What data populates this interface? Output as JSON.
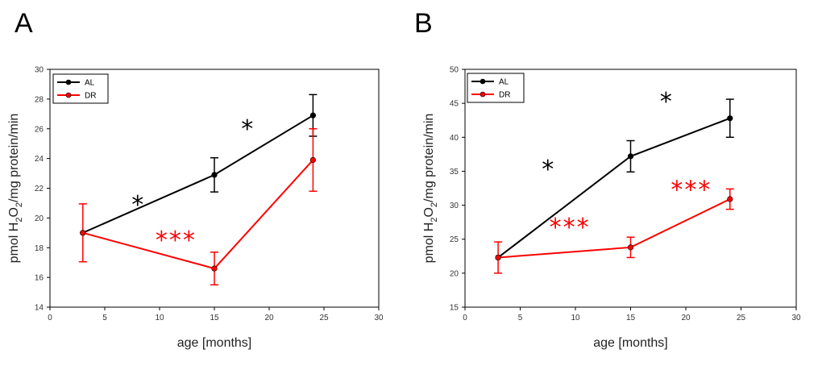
{
  "chart_data": [
    {
      "panel": "A",
      "type": "line",
      "xlabel": "age [months]",
      "ylabel": {
        "prefix": "pmol H",
        "sub1": "2",
        "mid": "O",
        "sub2": "2",
        "suffix": "/mg protein/min"
      },
      "xlim": [
        0,
        30
      ],
      "ylim": [
        14,
        30
      ],
      "xticks": [
        0,
        5,
        10,
        15,
        20,
        25,
        30
      ],
      "yticks": [
        14,
        16,
        18,
        20,
        22,
        24,
        26,
        28,
        30
      ],
      "x": [
        3,
        15,
        24
      ],
      "series": [
        {
          "name": "AL",
          "color": "#000000",
          "values": [
            19.0,
            22.9,
            26.9
          ],
          "errors": [
            0.0,
            1.15,
            1.4
          ]
        },
        {
          "name": "DR",
          "color": "#ff0000",
          "values": [
            19.0,
            16.6,
            23.9
          ],
          "errors": [
            1.95,
            1.1,
            2.1
          ]
        }
      ],
      "annotations": [
        {
          "text": "*",
          "color": "#000000",
          "x": 8,
          "y": 21.0
        },
        {
          "text": "*",
          "color": "#000000",
          "x": 18,
          "y": 26.1
        },
        {
          "text": "***",
          "color": "#ff0000",
          "x": 11.5,
          "y": 18.6
        }
      ],
      "legend": "top-left"
    },
    {
      "panel": "B",
      "type": "line",
      "xlabel": "age [months]",
      "ylabel": {
        "prefix": "pmol H",
        "sub1": "2",
        "mid": "O",
        "sub2": "2",
        "suffix": "/mg protein/min"
      },
      "xlim": [
        0,
        30
      ],
      "ylim": [
        15,
        50
      ],
      "xticks": [
        0,
        5,
        10,
        15,
        20,
        25,
        30
      ],
      "yticks": [
        15,
        20,
        25,
        30,
        35,
        40,
        45,
        50
      ],
      "x": [
        3,
        15,
        24
      ],
      "series": [
        {
          "name": "AL",
          "color": "#000000",
          "values": [
            22.3,
            37.2,
            42.8
          ],
          "errors": [
            0.0,
            2.3,
            2.8
          ]
        },
        {
          "name": "DR",
          "color": "#ff0000",
          "values": [
            22.3,
            23.8,
            30.9
          ],
          "errors": [
            2.3,
            1.5,
            1.5
          ]
        }
      ],
      "annotations": [
        {
          "text": "*",
          "color": "#000000",
          "x": 7.5,
          "y": 35.5
        },
        {
          "text": "*",
          "color": "#000000",
          "x": 18.2,
          "y": 45.5
        },
        {
          "text": "***",
          "color": "#ff0000",
          "x": 9.5,
          "y": 27.0
        },
        {
          "text": "***",
          "color": "#ff0000",
          "x": 20.5,
          "y": 32.5
        }
      ],
      "legend": "top-left"
    }
  ]
}
